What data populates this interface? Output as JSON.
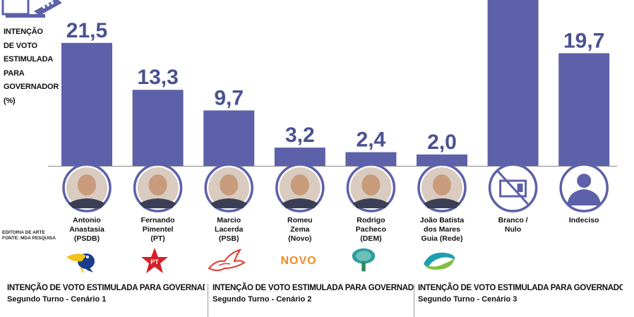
{
  "side_title": "INTENÇÃO\n DE VOTO\nESTIMULADA\nPARA\nGOVERNADOR\n(%)",
  "credits": [
    "EDITORIA DE ARTE",
    "FONTE: MDA PESQUISA"
  ],
  "colors": {
    "bar": "#5d61a9",
    "value": "#4a5190",
    "ring": "#5d61a9"
  },
  "chart_data": {
    "type": "bar",
    "title": "",
    "xlabel": "",
    "ylabel": "",
    "categories": [
      "Antonio Anastasia (PSDB)",
      "Fernando Pimentel (PT)",
      "Marcio Lacerda (PSB)",
      "Romeu Zema (Novo)",
      "Rodrigo Pacheco (DEM)",
      "João Batista dos Mares Guia (Rede)",
      "Branco / Nulo",
      "Indeciso"
    ],
    "labels": [
      [
        "Antonio",
        "Anastasia",
        "(PSDB)"
      ],
      [
        "Fernando",
        "Pimentel",
        "(PT)"
      ],
      [
        "Marcio",
        "Lacerda",
        "(PSB)"
      ],
      [
        "Romeu",
        "Zema",
        "(Novo)"
      ],
      [
        "Rodrigo",
        "Pacheco",
        "(DEM)"
      ],
      [
        "João Batista",
        "dos Mares",
        "Guia (Rede)"
      ],
      [
        "Branco /",
        "Nulo"
      ],
      [
        "Indeciso"
      ]
    ],
    "values": [
      21.5,
      13.3,
      9.7,
      3.2,
      2.4,
      2.0,
      29.0,
      19.7
    ],
    "value_labels": [
      "21,5",
      "13,3",
      "9,7",
      "3,2",
      "2,4",
      "2,0",
      "",
      "19,7"
    ],
    "ylim": [
      0,
      29
    ],
    "grid": false
  },
  "logos": [
    "toucan-logo",
    "pt-star-logo",
    "dove-logo",
    "novo-logo",
    "tree-logo",
    "rede-logo"
  ],
  "novo_text": "NOVO",
  "pt_text": "PT",
  "panels": [
    {
      "title": "INTENÇÃO DE VOTO ESTIMULADA PARA GOVERNADOR (%)",
      "subtitle": "Segundo Turno - Cenário 1"
    },
    {
      "title": "INTENÇÃO DE VOTO ESTIMULADA PARA GOVERNADOR (%)",
      "subtitle": "Segundo Turno - Cenário 2"
    },
    {
      "title": "INTENÇÃO DE VOTO ESTIMULADA PARA GOVERNADOR (%)",
      "subtitle": "Segundo Turno - Cenário 3"
    }
  ]
}
